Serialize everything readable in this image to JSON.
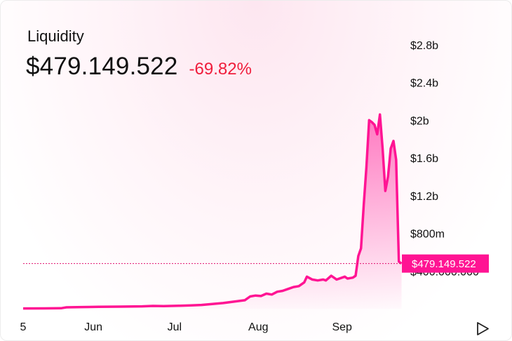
{
  "header": {
    "title": "Liquidity",
    "value": "$479.149.522",
    "change": "-69.82%"
  },
  "colors": {
    "line": "#ff1493",
    "change_negative": "#f01d3c",
    "tag_bg": "#ff1493"
  },
  "controls": {
    "play_icon": "play-icon"
  },
  "chart_data": {
    "type": "area",
    "title": "",
    "xlabel": "",
    "ylabel": "",
    "y_ticks": [
      {
        "value": 2800000000,
        "label": "$2.8b"
      },
      {
        "value": 2400000000,
        "label": "$2.4b"
      },
      {
        "value": 2000000000,
        "label": "$2b"
      },
      {
        "value": 1600000000,
        "label": "$1.6b"
      },
      {
        "value": 1200000000,
        "label": "$1.2b"
      },
      {
        "value": 800000000,
        "label": "$800m"
      },
      {
        "value": 400000000,
        "label": "$400.000.000"
      }
    ],
    "x_ticks": [
      {
        "day": 0,
        "label": "5"
      },
      {
        "day": 26,
        "label": "Jun"
      },
      {
        "day": 56,
        "label": "Jul"
      },
      {
        "day": 87,
        "label": "Aug"
      },
      {
        "day": 118,
        "label": "Sep"
      }
    ],
    "x_range": [
      0,
      164
    ],
    "y_range": [
      0,
      2940000000
    ],
    "current_value": 479149522,
    "current_label": "$479.149.522",
    "series": [
      {
        "values": [
          [
            0,
            3000000
          ],
          [
            8,
            4000000
          ],
          [
            14,
            5000000
          ],
          [
            16,
            15000000
          ],
          [
            22,
            18000000
          ],
          [
            28,
            20000000
          ],
          [
            36,
            22000000
          ],
          [
            44,
            25000000
          ],
          [
            48,
            30000000
          ],
          [
            52,
            28000000
          ],
          [
            58,
            32000000
          ],
          [
            62,
            35000000
          ],
          [
            66,
            40000000
          ],
          [
            70,
            50000000
          ],
          [
            74,
            60000000
          ],
          [
            78,
            75000000
          ],
          [
            82,
            90000000
          ],
          [
            84,
            130000000
          ],
          [
            86,
            140000000
          ],
          [
            88,
            135000000
          ],
          [
            90,
            160000000
          ],
          [
            92,
            150000000
          ],
          [
            94,
            180000000
          ],
          [
            96,
            190000000
          ],
          [
            98,
            210000000
          ],
          [
            100,
            230000000
          ],
          [
            102,
            240000000
          ],
          [
            104,
            280000000
          ],
          [
            105,
            340000000
          ],
          [
            107,
            310000000
          ],
          [
            109,
            300000000
          ],
          [
            111,
            310000000
          ],
          [
            112,
            300000000
          ],
          [
            114,
            350000000
          ],
          [
            116,
            310000000
          ],
          [
            118,
            330000000
          ],
          [
            119,
            340000000
          ],
          [
            120,
            320000000
          ],
          [
            122,
            330000000
          ],
          [
            123,
            350000000
          ],
          [
            124,
            560000000
          ],
          [
            125,
            640000000
          ],
          [
            126,
            1100000000
          ],
          [
            127,
            1500000000
          ],
          [
            128,
            2000000000
          ],
          [
            129,
            1980000000
          ],
          [
            130,
            1950000000
          ],
          [
            131,
            1850000000
          ],
          [
            132,
            2060000000
          ],
          [
            133,
            1700000000
          ],
          [
            134,
            1250000000
          ],
          [
            135,
            1400000000
          ],
          [
            136,
            1700000000
          ],
          [
            137,
            1780000000
          ],
          [
            138,
            1580000000
          ],
          [
            139,
            500000000
          ],
          [
            140,
            479149522
          ]
        ]
      }
    ]
  }
}
